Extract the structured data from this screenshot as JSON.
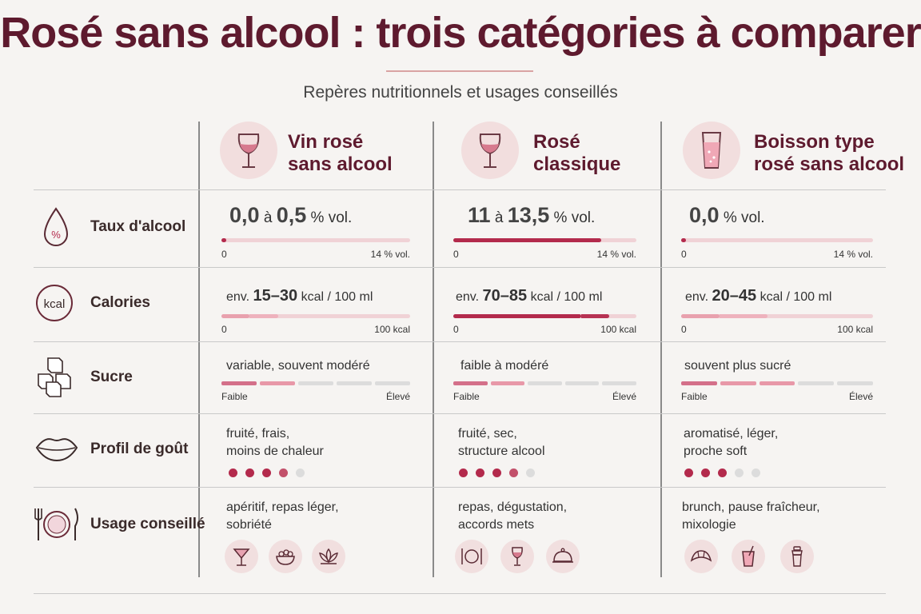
{
  "title": "Rosé sans alcool : trois catégories à comparer",
  "subtitle": "Repères nutritionnels et usages conseillés",
  "columns": [
    {
      "name_line1": "Vin rosé",
      "name_line2": "sans alcool",
      "icon": "wine-glass-icon"
    },
    {
      "name_line1": "Rosé",
      "name_line2": "classique",
      "icon": "wine-glass-icon"
    },
    {
      "name_line1": "Boisson type",
      "name_line2": "rosé sans alcool",
      "icon": "tumbler-glass-icon"
    }
  ],
  "rows": {
    "alcohol": {
      "label": "Taux d'alcool",
      "icon": "drop-percent-icon"
    },
    "calories": {
      "label": "Calories",
      "icon": "kcal-icon"
    },
    "sugar": {
      "label": "Sucre",
      "icon": "sugar-cubes-icon"
    },
    "taste": {
      "label": "Profil de goût",
      "icon": "lips-icon"
    },
    "usage": {
      "label": "Usage conseillé",
      "icon": "plate-cutlery-icon"
    }
  },
  "alcohol": {
    "scale_min": "0",
    "scale_max": "14 % vol.",
    "unit": "% vol.",
    "connector": "à",
    "values": [
      {
        "low": "0,0",
        "high": "0,5",
        "level": 0.02
      },
      {
        "low": "11",
        "high": "13,5",
        "level": 0.81
      },
      {
        "low": "0,0",
        "high": "",
        "level": 0.02
      }
    ]
  },
  "calories": {
    "prefix": "env.",
    "unit": "kcal / 100 ml",
    "scale_min": "0",
    "scale_max": "100 kcal",
    "values": [
      {
        "range": "15–30",
        "low": 15,
        "high": 30
      },
      {
        "range": "70–85",
        "low": 70,
        "high": 85
      },
      {
        "range": "20–45",
        "low": 20,
        "high": 45
      }
    ]
  },
  "sugar": {
    "scale_min": "Faible",
    "scale_max": "Élevé",
    "values": [
      {
        "text": "variable, souvent modéré",
        "level": 2
      },
      {
        "text": "faible à modéré",
        "level": 2
      },
      {
        "text": "souvent plus sucré",
        "level": 3
      }
    ]
  },
  "taste": {
    "values": [
      {
        "line1": "fruité, frais,",
        "line2": "moins de chaleur",
        "rating": 4
      },
      {
        "line1": "fruité, sec,",
        "line2": "structure alcool",
        "rating": 4
      },
      {
        "line1": "aromatisé, léger,",
        "line2": "proche soft",
        "rating": 3
      }
    ]
  },
  "usage": {
    "values": [
      {
        "line1": "apéritif, repas léger,",
        "line2": "sobriété",
        "icons": [
          "cocktail-glass-icon",
          "salad-bowl-icon",
          "lotus-icon"
        ]
      },
      {
        "line1": "repas, dégustation,",
        "line2": "accords mets",
        "icons": [
          "plate-cutlery-icon",
          "wine-glass-icon",
          "cloche-icon"
        ]
      },
      {
        "line1": "brunch, pause fraîcheur,",
        "line2": "mixologie",
        "icons": [
          "croissant-icon",
          "straw-glass-icon",
          "shaker-icon"
        ]
      }
    ]
  },
  "colors": {
    "accent": "#b32a4c",
    "light": "#eeb2bd",
    "title": "#5e1a2e",
    "inactive": "#dcdcdc"
  }
}
